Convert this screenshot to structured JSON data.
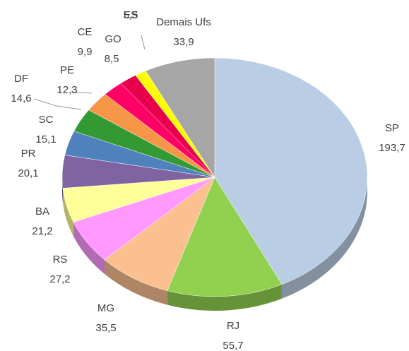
{
  "chart_data": {
    "type": "pie",
    "categories": [
      "SP",
      "RJ",
      "MG",
      "RS",
      "BA",
      "PR",
      "SC",
      "DF",
      "PE",
      "CE",
      "GO",
      "ES",
      "Demais Ufs"
    ],
    "values": [
      193.7,
      55.7,
      35.5,
      27.2,
      21.2,
      20.1,
      15.1,
      14.6,
      12.3,
      9.9,
      8.5,
      5.5,
      33.9
    ],
    "value_labels": [
      "193,7",
      "55,7",
      "35,5",
      "27,2",
      "21,2",
      "20,1",
      "15,1",
      "14,6",
      "12,3",
      "9,9",
      "8,5",
      "5,5",
      "33,9"
    ],
    "colors": [
      "#b9cde5",
      "#92d050",
      "#fac090",
      "#ff99ff",
      "#ffff99",
      "#8064a2",
      "#4f81bd",
      "#339933",
      "#f79646",
      "#ff0066",
      "#e8004c",
      "#ffff00",
      "#a6a6a6"
    ]
  }
}
